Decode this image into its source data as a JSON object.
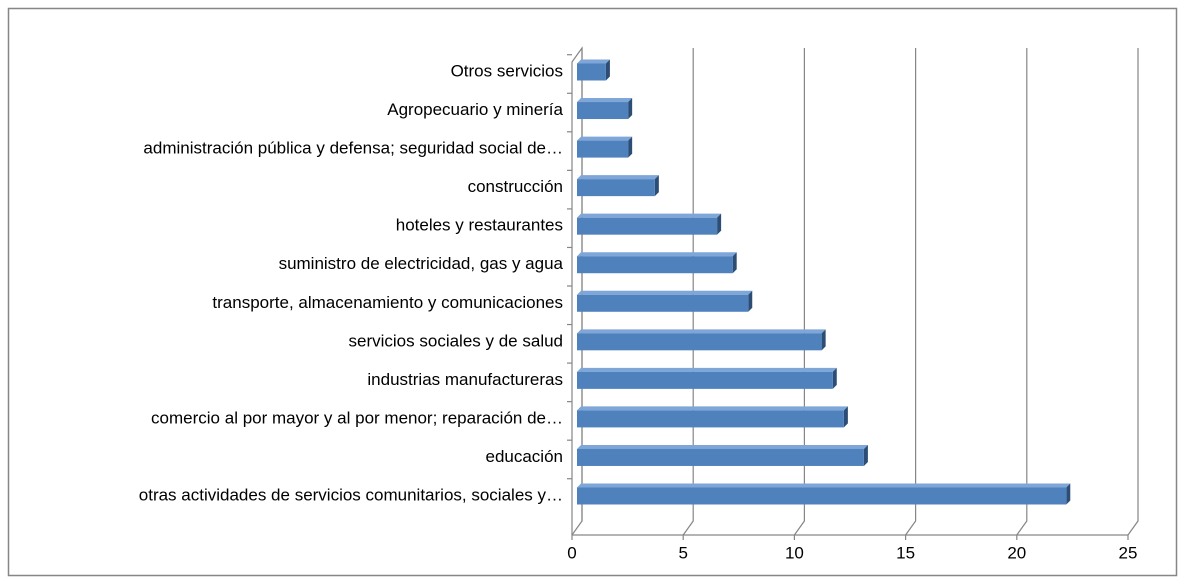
{
  "chart_data": {
    "type": "bar",
    "orientation": "horizontal",
    "3d": true,
    "categories": [
      "Otros servicios",
      "Agropecuario y minería",
      "administración pública y defensa; seguridad social de…",
      "construcción",
      "hoteles y restaurantes",
      "suministro de electricidad, gas y agua",
      "transporte, almacenamiento y comunicaciones",
      "servicios sociales y de salud",
      "industrias manufactureras",
      "comercio al por mayor y al por menor; reparación de…",
      "educación",
      "otras actividades de servicios comunitarios, sociales y…"
    ],
    "values": [
      1.3,
      2.3,
      2.3,
      3.5,
      6.3,
      7.0,
      7.7,
      11.0,
      11.5,
      12.0,
      12.9,
      22.0
    ],
    "color": "#4f81bd",
    "xlim": [
      0,
      25
    ],
    "xticks": [
      0,
      5,
      10,
      15,
      20,
      25
    ],
    "grid": true
  }
}
